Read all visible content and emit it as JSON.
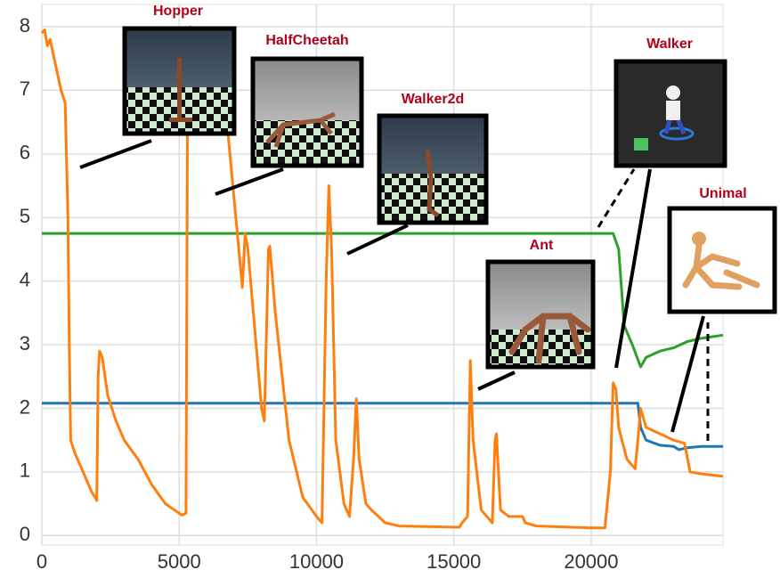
{
  "chart_data": {
    "type": "line",
    "annotations": [
      "Hopper",
      "HalfCheetah",
      "Walker2d",
      "Ant",
      "Walker",
      "Unimal"
    ],
    "xlim": [
      0,
      24800
    ],
    "ylim": [
      -0.15,
      8.35
    ],
    "xticks": [
      0,
      5000,
      10000,
      15000,
      20000
    ],
    "yticks": [
      0,
      1,
      2,
      3,
      4,
      5,
      6,
      7,
      8
    ],
    "grid": true,
    "series": [
      {
        "color": "#1f77b4",
        "x": [
          0,
          21700,
          21800,
          22000,
          22500,
          23000,
          23200,
          23500,
          24000,
          24800
        ],
        "values": [
          2.08,
          2.08,
          1.7,
          1.5,
          1.42,
          1.4,
          1.35,
          1.38,
          1.4,
          1.4
        ]
      },
      {
        "color": "#2ca02c",
        "x": [
          0,
          20800,
          21000,
          21200,
          21500,
          21800,
          22000,
          22500,
          23000,
          23500,
          24000,
          24800
        ],
        "values": [
          4.75,
          4.75,
          4.5,
          3.3,
          3.0,
          2.65,
          2.8,
          2.9,
          2.95,
          3.05,
          3.1,
          3.15
        ]
      },
      {
        "color": "#ff7f0e",
        "x": [
          0,
          100,
          200,
          300,
          500,
          700,
          850,
          950,
          1000,
          1050,
          1200,
          1500,
          1800,
          2000,
          2050,
          2100,
          2200,
          2400,
          2700,
          3000,
          3500,
          4000,
          4500,
          5000,
          5100,
          5250,
          5300,
          5400,
          6500,
          6750,
          7300,
          7400,
          7500,
          8000,
          8100,
          8250,
          8300,
          8500,
          9000,
          9500,
          10000,
          10200,
          10350,
          10450,
          10550,
          10700,
          11000,
          11200,
          11350,
          11450,
          11550,
          11800,
          12000,
          12500,
          13000,
          15200,
          15300,
          15500,
          15600,
          15700,
          16000,
          16400,
          16500,
          16550,
          16700,
          17000,
          17500,
          17600,
          18000,
          20000,
          20500,
          20700,
          20800,
          20900,
          21000,
          21300,
          21600,
          21700,
          21800,
          22000,
          22500,
          23000,
          23400,
          23600,
          24000,
          24800
        ],
        "values": [
          7.9,
          7.95,
          7.7,
          7.8,
          7.4,
          7.0,
          6.8,
          5.0,
          3.0,
          1.5,
          1.3,
          1.0,
          0.7,
          0.55,
          2.5,
          2.9,
          2.8,
          2.2,
          1.8,
          1.5,
          1.2,
          0.8,
          0.5,
          0.35,
          0.32,
          0.35,
          6.3,
          8.0,
          7.5,
          6.45,
          3.9,
          4.75,
          4.5,
          2.0,
          1.8,
          4.5,
          4.55,
          3.5,
          1.5,
          0.6,
          0.3,
          0.2,
          4.0,
          5.5,
          4.5,
          1.5,
          0.5,
          0.3,
          1.2,
          2.15,
          1.2,
          0.5,
          0.4,
          0.2,
          0.15,
          0.13,
          0.2,
          0.3,
          2.75,
          1.5,
          0.4,
          0.2,
          1.5,
          1.6,
          0.4,
          0.3,
          0.3,
          0.2,
          0.15,
          0.12,
          0.12,
          1.0,
          2.4,
          2.3,
          1.7,
          1.2,
          1.05,
          1.5,
          2.0,
          1.7,
          1.6,
          1.5,
          1.45,
          1.0,
          0.97,
          0.93
        ]
      }
    ]
  }
}
